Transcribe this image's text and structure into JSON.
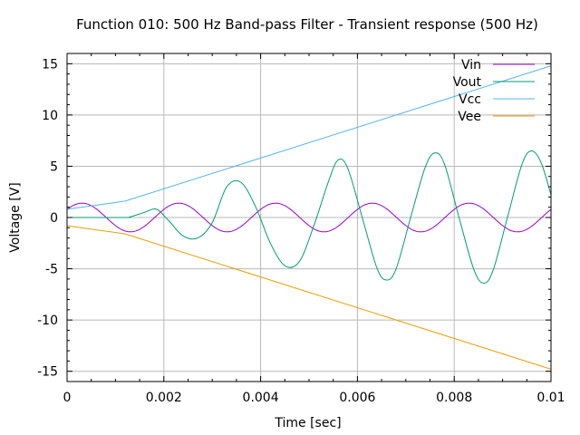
{
  "chart_data": {
    "type": "line",
    "title": "Function 010: 500 Hz Band-pass Filter - Transient response (500 Hz)",
    "xlabel": "Time [sec]",
    "ylabel": "Voltage [V]",
    "xlim": [
      0,
      0.01
    ],
    "ylim": [
      -16,
      16
    ],
    "grid": true,
    "legend": "top-right",
    "x_ticks": [
      "0",
      "0.002",
      "0.004",
      "0.006",
      "0.008",
      "0.01"
    ],
    "y_ticks": [
      "15",
      "10",
      "5",
      "0",
      "-5",
      "-10",
      "-15"
    ],
    "series": [
      {
        "name": "Vin",
        "color": "#9400d3",
        "form": "sine",
        "amplitude": 1.4,
        "frequency_hz": 500,
        "phase_rad": 0.6
      },
      {
        "name": "Vout",
        "color": "#009e73",
        "x": [
          0,
          0.0012,
          0.0013,
          0.0016,
          0.00185,
          0.0021,
          0.0024,
          0.0027,
          0.003,
          0.0033,
          0.0036,
          0.0039,
          0.0042,
          0.0045,
          0.0048,
          0.0051,
          0.0054,
          0.0056,
          0.0058,
          0.0061,
          0.0064,
          0.0066,
          0.0068,
          0.0071,
          0.0074,
          0.0076,
          0.0078,
          0.0081,
          0.0084,
          0.0086,
          0.0088,
          0.0091,
          0.0094,
          0.0096,
          0.0098,
          0.01
        ],
        "y": [
          0,
          0,
          0.05,
          0.5,
          0.8,
          -0.3,
          -1.8,
          -2,
          -0.5,
          3,
          3.4,
          1,
          -2.5,
          -4.7,
          -4.3,
          -0.8,
          3.5,
          5.6,
          4.8,
          0,
          -4.9,
          -6.1,
          -5,
          0,
          4.9,
          6.3,
          5.2,
          0,
          -5,
          -6.4,
          -5.2,
          0,
          5.2,
          6.5,
          5.3,
          2.2
        ]
      },
      {
        "name": "Vcc",
        "color": "#56b4e9",
        "x": [
          0,
          0.0012,
          0.01
        ],
        "y": [
          0.8,
          1.6,
          14.8
        ]
      },
      {
        "name": "Vee",
        "color": "#e69f00",
        "x": [
          0,
          0.0012,
          0.01
        ],
        "y": [
          -0.8,
          -1.6,
          -14.8
        ]
      }
    ]
  }
}
